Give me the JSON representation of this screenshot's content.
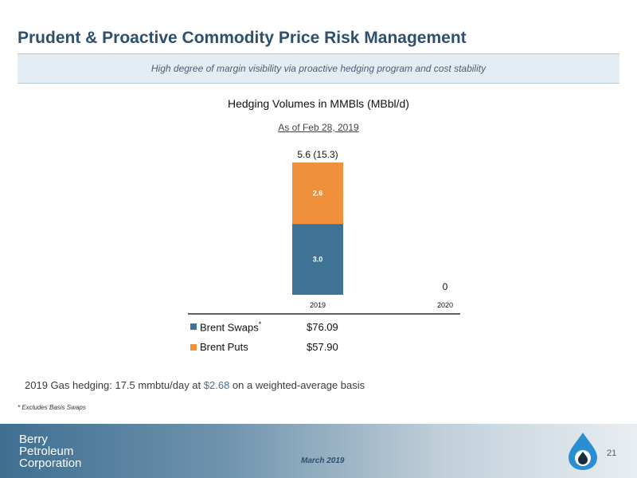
{
  "header": {
    "title": "Prudent & Proactive Commodity Price Risk Management",
    "banner": "High degree of margin visibility via proactive hedging program and cost stability"
  },
  "chart_data": {
    "type": "bar",
    "stacked": true,
    "title": "Hedging Volumes in MMBls (MBbl/d)",
    "subtitle": "As of Feb 28, 2019",
    "categories": [
      "2019",
      "2020"
    ],
    "series": [
      {
        "name": "Brent Swaps",
        "values": [
          3.0,
          0
        ],
        "labels": [
          "3.0",
          ""
        ],
        "color": "#3f7396"
      },
      {
        "name": "Brent Puts",
        "values": [
          2.6,
          0
        ],
        "labels": [
          "2.6",
          ""
        ],
        "color": "#f0903a"
      }
    ],
    "totals": [
      "5.6 (15.3)",
      "0"
    ],
    "ylim": [
      0,
      5.6
    ],
    "grid": false
  },
  "legend": [
    {
      "label": "Brent Swaps",
      "marker": "*",
      "price": "$76.09",
      "color": "#3f7396"
    },
    {
      "label": "Brent Puts",
      "marker": "",
      "price": "$57.90",
      "color": "#f0903a"
    }
  ],
  "gas": {
    "part1": "2019 Gas hedging: 17.5 mmbtu/day at ",
    "price": "$2.68",
    "part2": " on a weighted-average basis"
  },
  "footnote": "* Excludes Basis Swaps",
  "footer": {
    "logo_line1": "Berry",
    "logo_line2": "Petroleum",
    "logo_line3": "Corporation",
    "date": "March 2019",
    "page": "21",
    "logo_icon": "oil-drop-icon"
  }
}
